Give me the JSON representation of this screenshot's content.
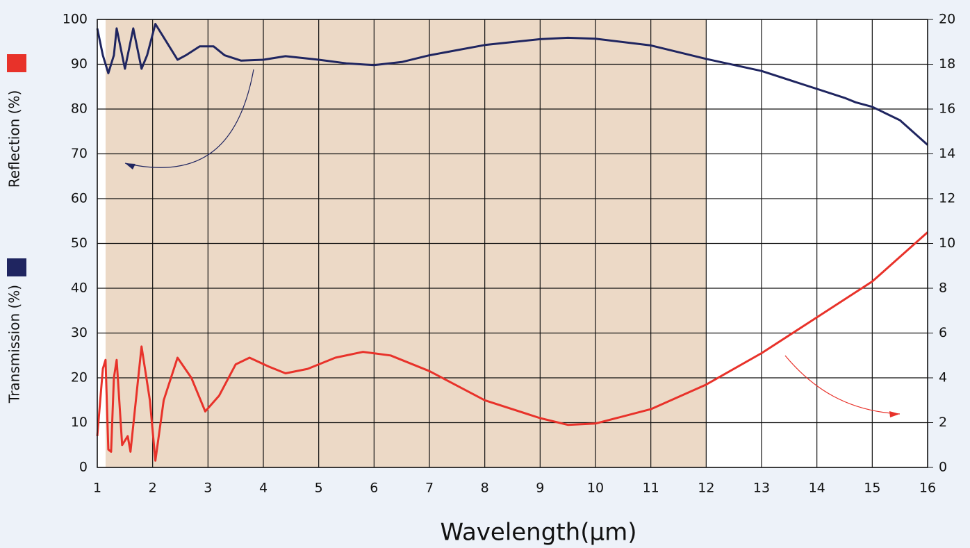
{
  "chart_data": {
    "type": "line",
    "x_label": "Wavelength(μm)",
    "xlim": [
      1,
      16
    ],
    "xticks": [
      1,
      2,
      3,
      4,
      5,
      6,
      7,
      8,
      9,
      10,
      11,
      12,
      13,
      14,
      15,
      16
    ],
    "ylim": [
      0,
      100
    ],
    "yticks": [
      0,
      10,
      20,
      30,
      40,
      50,
      60,
      70,
      80,
      90,
      100
    ],
    "y2lim": [
      0,
      20
    ],
    "y2ticks": [
      0,
      2,
      4,
      6,
      8,
      10,
      12,
      14,
      16,
      18,
      20
    ],
    "grid": true,
    "highlight_range": [
      1.15,
      12
    ],
    "highlight_color": "#ecd9c6",
    "series": [
      {
        "name": "Transmission (%)",
        "color": "#1f2560",
        "x": [
          1.0,
          1.1,
          1.2,
          1.3,
          1.35,
          1.5,
          1.6,
          1.65,
          1.8,
          1.9,
          2.05,
          2.2,
          2.45,
          2.6,
          2.85,
          3.1,
          3.3,
          3.6,
          4,
          4.4,
          5,
          5.5,
          6,
          6.5,
          7,
          8,
          9,
          9.5,
          10,
          11,
          12,
          13,
          14,
          14.5,
          14.7,
          15,
          15.5,
          16
        ],
        "values": [
          98,
          92,
          88,
          92,
          98,
          89,
          95,
          98,
          89,
          92,
          99,
          96,
          91,
          92,
          94,
          94,
          92,
          90.8,
          91,
          91.8,
          91,
          90.2,
          89.8,
          90.5,
          92,
          94.3,
          95.6,
          95.9,
          95.7,
          94.2,
          91.2,
          88.5,
          84.5,
          82.5,
          81.5,
          80.5,
          77.5,
          72
        ]
      },
      {
        "name": "Reflection (%)",
        "color": "#e8322a",
        "axis": "y2",
        "x": [
          1.0,
          1.1,
          1.15,
          1.2,
          1.25,
          1.3,
          1.35,
          1.45,
          1.55,
          1.6,
          1.8,
          1.95,
          2.05,
          2.2,
          2.45,
          2.7,
          2.95,
          3.2,
          3.5,
          3.75,
          4.1,
          4.4,
          4.8,
          5.3,
          5.8,
          6.3,
          7,
          8,
          9,
          9.5,
          10,
          11,
          12,
          13,
          14,
          15,
          16
        ],
        "values": [
          1.4,
          4.4,
          4.8,
          0.8,
          0.7,
          4,
          4.8,
          1,
          1.4,
          0.7,
          5.4,
          3,
          0.3,
          3,
          4.9,
          4,
          2.5,
          3.2,
          4.6,
          4.9,
          4.5,
          4.2,
          4.4,
          4.9,
          5.16,
          5,
          4.3,
          3,
          2.2,
          1.9,
          1.96,
          2.6,
          3.7,
          5.1,
          6.7,
          8.3,
          10.5
        ]
      }
    ]
  }
}
